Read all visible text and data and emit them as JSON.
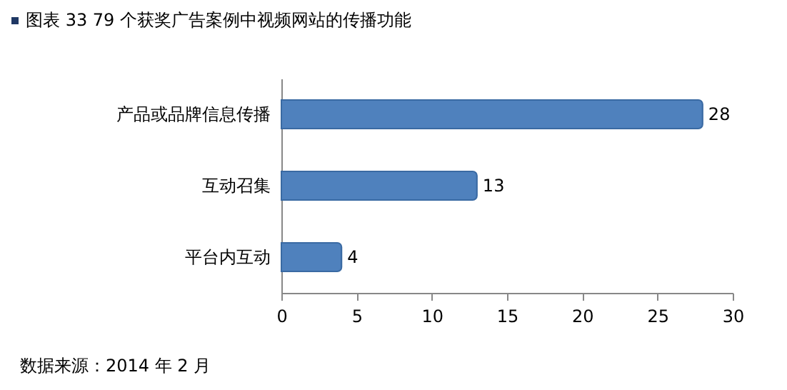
{
  "chart_data": {
    "type": "bar",
    "orientation": "horizontal",
    "title": "图表 33 79 个获奖广告案例中视频网站的传播功能",
    "categories": [
      "产品或品牌信息传播",
      "互动召集",
      "平台内互动"
    ],
    "values": [
      28,
      13,
      4
    ],
    "color": "#4f81bd",
    "xlim": [
      0,
      30
    ],
    "xticks": [
      0,
      5,
      10,
      15,
      20,
      25,
      30
    ],
    "grid": false,
    "data_labels": true,
    "annotations": [
      "数据来源：2014 年 2 月"
    ]
  }
}
